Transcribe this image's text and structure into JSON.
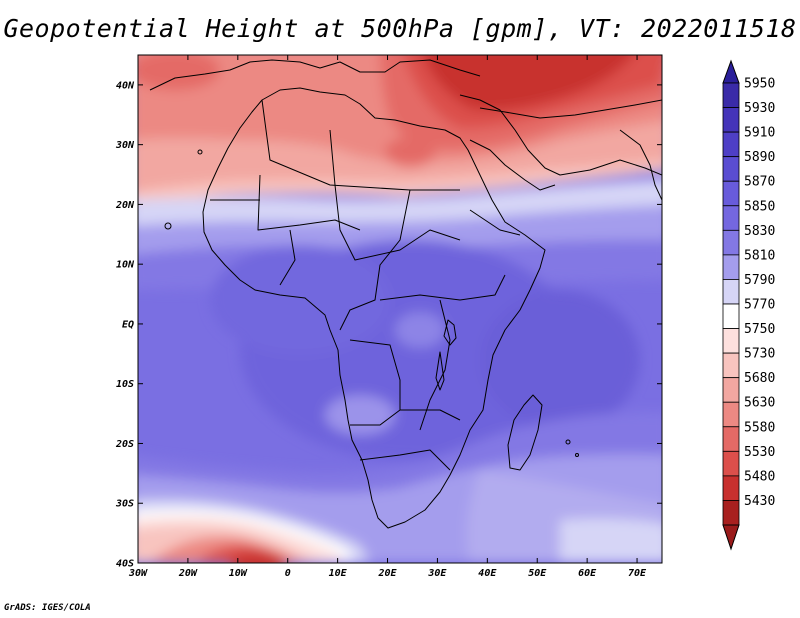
{
  "title": "Geopotential Height at 500hPa [gpm], VT: 2022011518",
  "credit": "GrADS: IGES/COLA",
  "map": {
    "variable": "Geopotential Height at 500hPa",
    "units": "gpm",
    "valid_time": "2022011518",
    "lon_range": [
      -30,
      75
    ],
    "lat_range": [
      -40,
      45
    ],
    "lat_ticks": [
      {
        "value": 40,
        "label": "40N"
      },
      {
        "value": 30,
        "label": "30N"
      },
      {
        "value": 20,
        "label": "20N"
      },
      {
        "value": 10,
        "label": "10N"
      },
      {
        "value": 0,
        "label": "EQ"
      },
      {
        "value": -10,
        "label": "10S"
      },
      {
        "value": -20,
        "label": "20S"
      },
      {
        "value": -30,
        "label": "30S"
      },
      {
        "value": -40,
        "label": "40S"
      }
    ],
    "lon_ticks": [
      {
        "value": -30,
        "label": "30W"
      },
      {
        "value": -20,
        "label": "20W"
      },
      {
        "value": -10,
        "label": "10W"
      },
      {
        "value": 0,
        "label": "0"
      },
      {
        "value": 10,
        "label": "10E"
      },
      {
        "value": 20,
        "label": "20E"
      },
      {
        "value": 30,
        "label": "30E"
      },
      {
        "value": 40,
        "label": "40E"
      },
      {
        "value": 50,
        "label": "50E"
      },
      {
        "value": 60,
        "label": "60E"
      },
      {
        "value": 70,
        "label": "70E"
      }
    ]
  },
  "colorbar": {
    "levels": [
      {
        "label": "5950",
        "color": "#3a2ba8"
      },
      {
        "label": "5930",
        "color": "#4434b9"
      },
      {
        "label": "5910",
        "color": "#4e3fc6"
      },
      {
        "label": "5890",
        "color": "#5a4dd2"
      },
      {
        "label": "5870",
        "color": "#685bdb"
      },
      {
        "label": "5850",
        "color": "#7467e0"
      },
      {
        "label": "5830",
        "color": "#8378e4"
      },
      {
        "label": "5810",
        "color": "#a49ded"
      },
      {
        "label": "5790",
        "color": "#d6d5f6"
      },
      {
        "label": "5770",
        "color": "#ffffff"
      },
      {
        "label": "5750",
        "color": "#fde0de"
      },
      {
        "label": "5730",
        "color": "#f8c4bf"
      },
      {
        "label": "5680",
        "color": "#f2a7a1"
      },
      {
        "label": "5630",
        "color": "#ec8983"
      },
      {
        "label": "5580",
        "color": "#e46a66"
      },
      {
        "label": "5530",
        "color": "#dc4f4b"
      },
      {
        "label": "5480",
        "color": "#c8302e"
      },
      {
        "label": "5430",
        "color": "#a8201f"
      }
    ],
    "top_color": "#2a1f9a",
    "bottom_color": "#9a1b1b"
  }
}
